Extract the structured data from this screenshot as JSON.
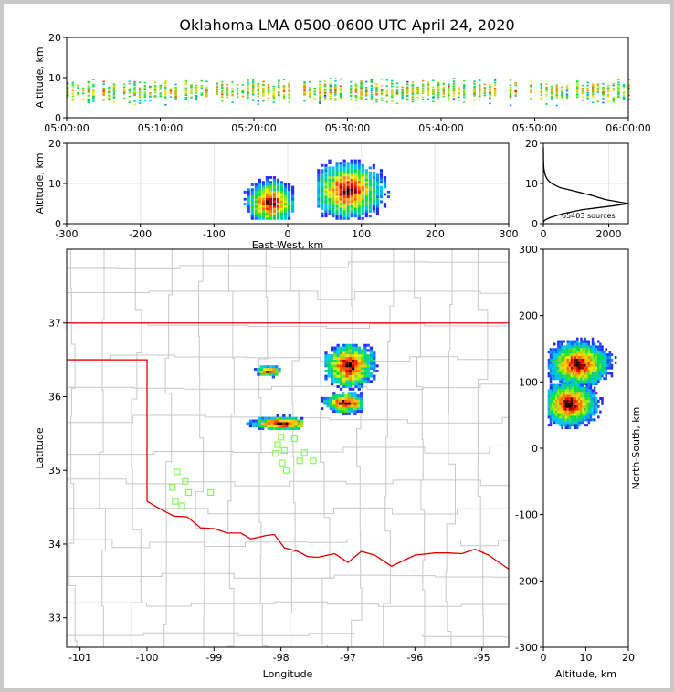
{
  "chart_data": [
    {
      "panel": "altitude-time",
      "type": "scatter",
      "title": "Oklahoma LMA 0500-0600 UTC April 24, 2020",
      "xlabel": "",
      "ylabel": "Altitude, km",
      "xlim_minutes": [
        0,
        60
      ],
      "ylim": [
        0,
        20
      ],
      "x_tick_labels": [
        "05:00:00",
        "05:10:00",
        "05:20:00",
        "05:30:00",
        "05:40:00",
        "05:50:00",
        "06:00:00"
      ],
      "y_ticks": [
        0,
        10,
        20
      ],
      "gap_minutes": [
        [
          45.8,
          46.8
        ],
        [
          48.2,
          49.0
        ]
      ],
      "source_altitude_range_km": [
        0.5,
        14
      ]
    },
    {
      "panel": "altitude-eastwest",
      "type": "scatter",
      "xlabel": "East-West, km",
      "ylabel": "Altitude, km",
      "xlim": [
        -300,
        300
      ],
      "ylim": [
        0,
        20
      ],
      "x_ticks": [
        -300,
        -200,
        -100,
        0,
        100,
        200,
        300
      ],
      "y_ticks": [
        0,
        10,
        20
      ],
      "clusters": [
        {
          "x_range": [
            -60,
            10
          ],
          "alt_range": [
            1,
            15
          ],
          "peak": [
            -25,
            5
          ]
        },
        {
          "x_range": [
            40,
            140
          ],
          "alt_range": [
            1,
            19
          ],
          "peak": [
            80,
            8
          ]
        }
      ]
    },
    {
      "panel": "altitude-histogram",
      "type": "line",
      "xlim": [
        0,
        2600
      ],
      "ylim": [
        0,
        20
      ],
      "x_ticks": [
        0,
        2000
      ],
      "y_ticks": [
        0,
        10,
        20
      ],
      "annotation": "65403 sources",
      "counts": [
        {
          "alt": 0.3,
          "n": 0
        },
        {
          "alt": 0.8,
          "n": 30
        },
        {
          "alt": 1.5,
          "n": 200
        },
        {
          "alt": 2.5,
          "n": 600
        },
        {
          "alt": 3.5,
          "n": 1200
        },
        {
          "alt": 4.5,
          "n": 2200
        },
        {
          "alt": 5.0,
          "n": 2600
        },
        {
          "alt": 6.0,
          "n": 1900
        },
        {
          "alt": 7.0,
          "n": 1500
        },
        {
          "alt": 8.0,
          "n": 1000
        },
        {
          "alt": 9.0,
          "n": 500
        },
        {
          "alt": 10.0,
          "n": 250
        },
        {
          "alt": 11.0,
          "n": 120
        },
        {
          "alt": 12.0,
          "n": 60
        },
        {
          "alt": 13.0,
          "n": 30
        },
        {
          "alt": 14.0,
          "n": 12
        },
        {
          "alt": 16.0,
          "n": 3
        },
        {
          "alt": 19.0,
          "n": 0
        }
      ]
    },
    {
      "panel": "plan-view-map",
      "type": "scatter",
      "xlabel": "Longitude",
      "ylabel": "Latitude",
      "xlim": [
        -101.2,
        -94.6
      ],
      "ylim": [
        32.6,
        38.0
      ],
      "x_ticks": [
        -101,
        -100,
        -99,
        -98,
        -97,
        -96,
        -95
      ],
      "y_ticks": [
        33,
        34,
        35,
        36,
        37
      ],
      "clusters": [
        {
          "lon": [
            -97.35,
            -96.55
          ],
          "lat": [
            36.05,
            36.7
          ],
          "peak": [
            -97.0,
            36.4
          ]
        },
        {
          "lon": [
            -97.5,
            -96.8
          ],
          "lat": [
            35.75,
            36.05
          ],
          "peak": [
            -97.05,
            35.9
          ]
        },
        {
          "lon": [
            -98.7,
            -97.7
          ],
          "lat": [
            35.55,
            35.75
          ],
          "peak": [
            -98.0,
            35.62
          ]
        },
        {
          "lon": [
            -98.45,
            -98.0
          ],
          "lat": [
            36.25,
            36.4
          ],
          "peak": [
            -98.2,
            36.33
          ]
        }
      ],
      "stations": [
        {
          "lon": -99.55,
          "lat": 34.98
        },
        {
          "lon": -99.43,
          "lat": 34.85
        },
        {
          "lon": -99.62,
          "lat": 34.77
        },
        {
          "lon": -99.38,
          "lat": 34.7
        },
        {
          "lon": -99.58,
          "lat": 34.58
        },
        {
          "lon": -99.48,
          "lat": 34.52
        },
        {
          "lon": -99.05,
          "lat": 34.7
        },
        {
          "lon": -98.0,
          "lat": 35.45
        },
        {
          "lon": -98.05,
          "lat": 35.35
        },
        {
          "lon": -97.95,
          "lat": 35.27
        },
        {
          "lon": -98.08,
          "lat": 35.23
        },
        {
          "lon": -97.8,
          "lat": 35.43
        },
        {
          "lon": -97.98,
          "lat": 35.1
        },
        {
          "lon": -97.72,
          "lat": 35.13
        },
        {
          "lon": -97.65,
          "lat": 35.24
        },
        {
          "lon": -97.52,
          "lat": 35.13
        },
        {
          "lon": -97.92,
          "lat": 35.0
        }
      ],
      "state_border_color": "#e00000",
      "county_line_color": "#c8c8c8",
      "station_color": "#80ff50"
    },
    {
      "panel": "northsouth-altitude",
      "type": "scatter",
      "xlabel": "Altitude, km",
      "ylabel": "North-South, km",
      "xlim": [
        0,
        20
      ],
      "ylim": [
        -300,
        300
      ],
      "x_ticks": [
        0,
        10,
        20
      ],
      "y_ticks": [
        -300,
        -200,
        -100,
        0,
        100,
        200,
        300
      ],
      "clusters": [
        {
          "ns_range": [
            95,
            165
          ],
          "alt_range": [
            1,
            19
          ],
          "peak": [
            125,
            8
          ]
        },
        {
          "ns_range": [
            25,
            95
          ],
          "alt_range": [
            1,
            17
          ],
          "peak": [
            65,
            6
          ]
        }
      ]
    }
  ]
}
